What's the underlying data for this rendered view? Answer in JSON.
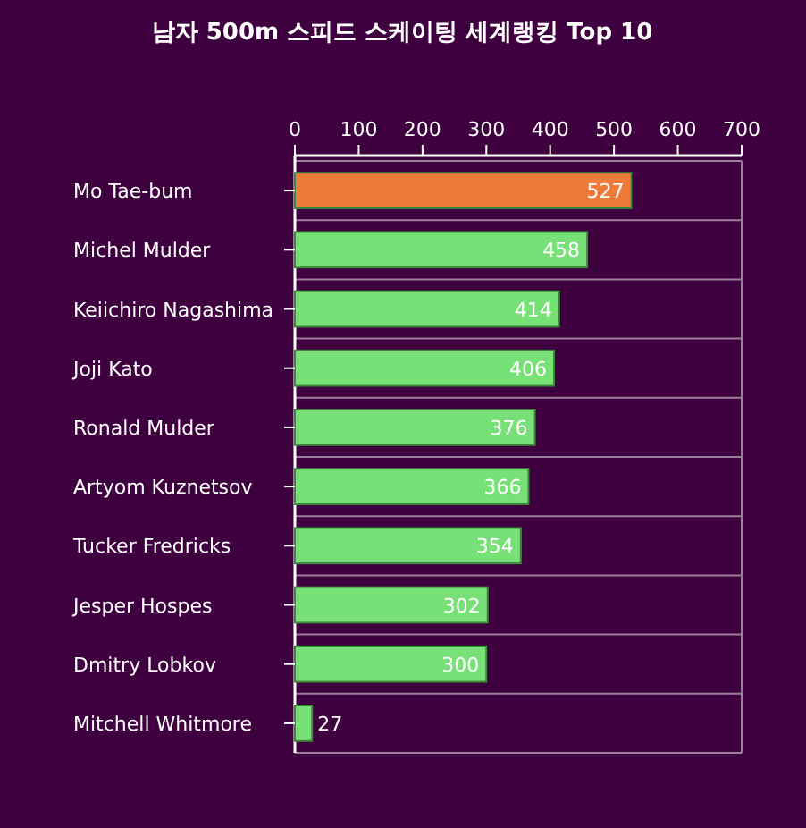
{
  "chart_data": {
    "type": "bar",
    "orientation": "horizontal",
    "title": "남자 500m 스피드 스케이팅 세계랭킹 Top 10",
    "categories": [
      "Mo Tae-bum",
      "Michel Mulder",
      "Keiichiro Nagashima",
      "Joji Kato",
      "Ronald Mulder",
      "Artyom Kuznetsov",
      "Tucker Fredricks",
      "Jesper Hospes",
      "Dmitry Lobkov",
      "Mitchell Whitmore"
    ],
    "values": [
      527,
      458,
      414,
      406,
      376,
      366,
      354,
      302,
      300,
      27
    ],
    "colors": [
      "#f07a3a",
      "#77e077",
      "#77e077",
      "#77e077",
      "#77e077",
      "#77e077",
      "#77e077",
      "#77e077",
      "#77e077",
      "#77e077"
    ],
    "xlim": [
      0,
      700
    ],
    "xticks": [
      0,
      100,
      200,
      300,
      400,
      500,
      600,
      700
    ],
    "grid": "y",
    "data_labels": true
  }
}
